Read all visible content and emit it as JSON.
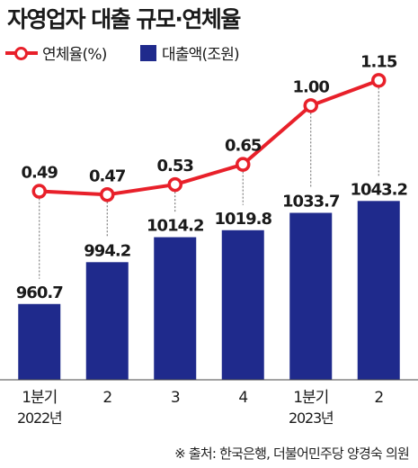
{
  "title": "자영업자 대출 규모·연체율",
  "source": "※ 출처: 한국은행, 더불어민주당 양경숙 의원",
  "colors": {
    "bar": "#1f2a8c",
    "line": "#e8202a",
    "text": "#1a1a1a"
  },
  "chart_data": {
    "type": "bar",
    "categories": [
      {
        "line1": "1분기",
        "line2": "2022년"
      },
      {
        "line1": "2",
        "line2": ""
      },
      {
        "line1": "3",
        "line2": ""
      },
      {
        "line1": "4",
        "line2": ""
      },
      {
        "line1": "1분기",
        "line2": "2023년"
      },
      {
        "line1": "2",
        "line2": ""
      }
    ],
    "series": [
      {
        "name": "대출액(조원)",
        "type": "bar",
        "values": [
          960.7,
          994.2,
          1014.2,
          1019.8,
          1033.7,
          1043.2
        ]
      },
      {
        "name": "연체율(%)",
        "type": "line",
        "values": [
          0.49,
          0.47,
          0.53,
          0.65,
          1.0,
          1.15
        ]
      }
    ],
    "value_labels": {
      "bars": [
        "960.7",
        "994.2",
        "1014.2",
        "1019.8",
        "1033.7",
        "1043.2"
      ],
      "line": [
        "0.49",
        "0.47",
        "0.53",
        "0.65",
        "1.00",
        "1.15"
      ]
    },
    "legend": [
      "연체율(%)",
      "대출액(조원)"
    ],
    "legend_position": "top-left",
    "grid": false
  }
}
